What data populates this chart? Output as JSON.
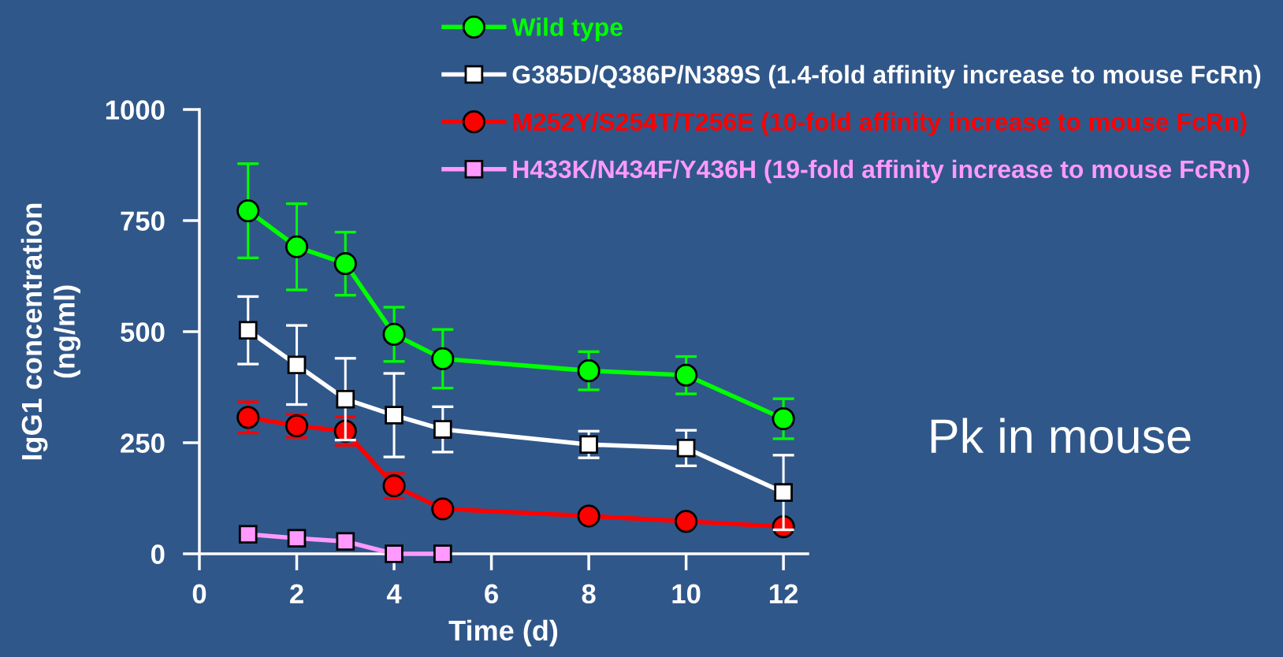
{
  "chart_data": {
    "type": "line",
    "xlabel": "Time (d)",
    "ylabel": "IgG1 concentration\n(ng/ml)",
    "x": [
      1,
      2,
      3,
      4,
      5,
      8,
      10,
      12
    ],
    "xlim": [
      0,
      12.5
    ],
    "xticks": [
      0,
      2,
      4,
      6,
      8,
      10,
      12
    ],
    "ylim": [
      0,
      1000
    ],
    "yticks": [
      0,
      250,
      500,
      750,
      1000
    ],
    "legend": "top right",
    "line_style": "solid",
    "annotations": [
      "Pk in mouse"
    ],
    "series": [
      {
        "name": "Wild type",
        "color": "#00ff00",
        "marker": "circle",
        "values": [
          772,
          691,
          653,
          494,
          439,
          412,
          402,
          304
        ],
        "errors": [
          106,
          97,
          71,
          61,
          66,
          43,
          42,
          45
        ]
      },
      {
        "name": "G385D/Q386P/N389S (1.4-fold affinity increase to mouse FcRn)",
        "color": "#ffffff",
        "marker": "square",
        "values": [
          503,
          425,
          348,
          312,
          280,
          246,
          238,
          138
        ],
        "errors": [
          76,
          89,
          92,
          94,
          51,
          30,
          40,
          84
        ]
      },
      {
        "name": "M252Y/S254T/T256E (10-fold affinity increase to mouse FcRn)",
        "color": "#ff0000",
        "marker": "circle",
        "values": [
          307,
          288,
          276,
          153,
          101,
          85,
          73,
          61
        ],
        "errors": [
          35,
          26,
          32,
          28,
          null,
          null,
          null,
          null
        ]
      },
      {
        "name": "H433K/N434F/Y436H (19-fold affinity increase to mouse FcRn)",
        "color": "#ff99ff",
        "marker": "square",
        "values": [
          44,
          35,
          28,
          0,
          0,
          null,
          null,
          null
        ]
      }
    ]
  }
}
